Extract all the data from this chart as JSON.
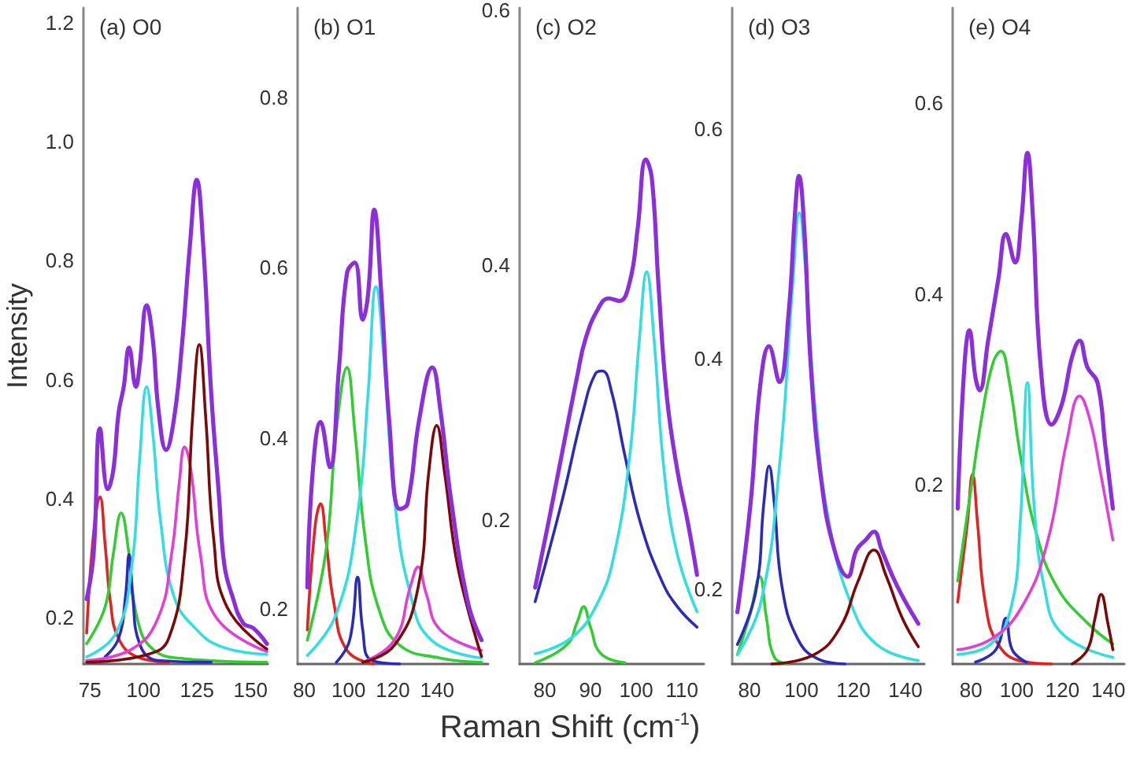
{
  "chart_data": [
    {
      "type": "line",
      "title": "(a) O0",
      "ylabel": "Intensity",
      "xlim": [
        72,
        158
      ],
      "xticks": [
        75,
        100,
        125,
        150
      ],
      "ylim": [
        0.122,
        1.225
      ],
      "yticks": [
        0.2,
        0.4,
        0.6,
        0.8,
        {
          "value": 1,
          "label": "1.0"
        },
        1.2
      ],
      "series": [
        {
          "color": "#e02424",
          "x": [
            73.5,
            76.7,
            79.7,
            82.1,
            84.6,
            88.4,
            97.0,
            111.8
          ],
          "values": [
            0.174,
            0.341,
            0.403,
            0.323,
            0.226,
            0.165,
            0.134,
            0.125
          ]
        },
        {
          "color": "#33cc33",
          "x": [
            73.5,
            82.1,
            85.9,
            89.6,
            93.3,
            97.0,
            104.4,
            119.2,
            157.6
          ],
          "values": [
            0.156,
            0.218,
            0.306,
            0.376,
            0.306,
            0.2,
            0.147,
            0.131,
            0.125
          ]
        },
        {
          "color": "#2b2bb8",
          "x": [
            82.1,
            88.4,
            91.6,
            93.3,
            95.0,
            98.2,
            106.9,
            131.6
          ],
          "values": [
            0.134,
            0.165,
            0.235,
            0.306,
            0.235,
            0.156,
            0.128,
            0.125
          ]
        },
        {
          "color": "#33dde0",
          "x": [
            73.5,
            87.2,
            94.6,
            98.2,
            101.5,
            104.4,
            108.1,
            114.3,
            124.2,
            136.5,
            157.6
          ],
          "values": [
            0.134,
            0.174,
            0.288,
            0.465,
            0.588,
            0.509,
            0.359,
            0.235,
            0.182,
            0.151,
            0.138
          ]
        },
        {
          "color": "#e040d8",
          "x": [
            73.5,
            94.6,
            106.9,
            113.1,
            116.8,
            119.2,
            122.2,
            126.6,
            134.0,
            157.6
          ],
          "values": [
            0.128,
            0.147,
            0.2,
            0.306,
            0.429,
            0.487,
            0.447,
            0.306,
            0.2,
            0.143
          ]
        },
        {
          "color": "#7a0a0a",
          "x": [
            73.5,
            101.9,
            111.8,
            119.2,
            122.9,
            126.1,
            129.1,
            132.8,
            139.0,
            157.6
          ],
          "values": [
            0.125,
            0.138,
            0.165,
            0.306,
            0.535,
            0.659,
            0.535,
            0.332,
            0.218,
            0.147
          ]
        },
        {
          "color": "#8b2fd9",
          "x": [
            73.5,
            76.7,
            79.7,
            83.4,
            85.9,
            88.4,
            90.8,
            93.3,
            96.5,
            98.2,
            101.5,
            104.4,
            106.9,
            110.6,
            114.3,
            118.0,
            121.7,
            124.9,
            127.9,
            131.6,
            135.3,
            137.8,
            141.6,
            146.5,
            151.4,
            157.6
          ],
          "values": [
            0.231,
            0.306,
            0.518,
            0.416,
            0.447,
            0.544,
            0.588,
            0.654,
            0.588,
            0.623,
            0.725,
            0.667,
            0.553,
            0.482,
            0.535,
            0.659,
            0.826,
            0.936,
            0.826,
            0.579,
            0.403,
            0.288,
            0.235,
            0.191,
            0.182,
            0.156
          ]
        }
      ]
    },
    {
      "type": "line",
      "title": "(b) O1",
      "xlim": [
        77,
        163
      ],
      "xticks": [
        80,
        100,
        120,
        140
      ],
      "ylim": [
        0.135,
        0.905
      ],
      "yticks": [
        0.2,
        0.4,
        0.6,
        0.8
      ],
      "series": [
        {
          "color": "#e02424",
          "x": [
            81.4,
            85.0,
            87.4,
            89.8,
            93.4,
            99.3,
            111.2
          ],
          "values": [
            0.175,
            0.299,
            0.323,
            0.28,
            0.206,
            0.151,
            0.135
          ]
        },
        {
          "color": "#33cc33",
          "x": [
            81.4,
            89.8,
            94.5,
            99.3,
            102.8,
            107.6,
            113.6,
            123.1,
            141.4,
            160.0
          ],
          "values": [
            0.163,
            0.268,
            0.409,
            0.483,
            0.409,
            0.28,
            0.2,
            0.157,
            0.142,
            0.137
          ]
        },
        {
          "color": "#2b2bb8",
          "x": [
            94.5,
            100.5,
            104.1,
            106.4,
            110.0,
            123.1
          ],
          "values": [
            0.137,
            0.163,
            0.237,
            0.175,
            0.14,
            0.135
          ]
        },
        {
          "color": "#33dde0",
          "x": [
            81.4,
            94.5,
            104.1,
            108.8,
            112.4,
            115.9,
            120.7,
            127.8,
            137.4,
            160.0
          ],
          "values": [
            0.145,
            0.194,
            0.311,
            0.452,
            0.578,
            0.495,
            0.329,
            0.218,
            0.163,
            0.142
          ]
        },
        {
          "color": "#e040d8",
          "x": [
            106.4,
            120.7,
            127.8,
            131.4,
            135.0,
            141.4,
            160.0
          ],
          "values": [
            0.137,
            0.163,
            0.225,
            0.249,
            0.218,
            0.175,
            0.151
          ]
        },
        {
          "color": "#7a0a0a",
          "x": [
            106.4,
            120.7,
            131.4,
            136.2,
            139.8,
            143.3,
            149.3,
            160.0
          ],
          "values": [
            0.137,
            0.157,
            0.225,
            0.36,
            0.415,
            0.36,
            0.249,
            0.144
          ]
        },
        {
          "color": "#8b2fd9",
          "x": [
            81.4,
            83.8,
            87.4,
            91.6,
            95.7,
            99.3,
            102.8,
            106.4,
            108.8,
            111.6,
            114.8,
            118.3,
            123.1,
            126.6,
            131.9,
            137.8,
            141.4,
            146.2,
            154.0,
            160.0
          ],
          "values": [
            0.225,
            0.36,
            0.419,
            0.366,
            0.483,
            0.594,
            0.606,
            0.539,
            0.569,
            0.668,
            0.569,
            0.422,
            0.317,
            0.323,
            0.422,
            0.483,
            0.434,
            0.329,
            0.206,
            0.163
          ]
        }
      ]
    },
    {
      "type": "line",
      "title": "(c) O2",
      "xlabel": "Raman Shift (cm$^{-1}$)",
      "xlim": [
        74.5,
        114.8
      ],
      "xticks": [
        80,
        90,
        100,
        110
      ],
      "ylim": [
        0.087,
        0.602
      ],
      "yticks": [
        0.2,
        0.4,
        0.6
      ],
      "series": [
        {
          "color": "#33cc33",
          "x": [
            77.9,
            84.8,
            87.1,
            88.5,
            90.0,
            92.3,
            97.5
          ],
          "values": [
            0.088,
            0.102,
            0.12,
            0.132,
            0.116,
            0.095,
            0.088
          ]
        },
        {
          "color": "#2b2bb8",
          "x": [
            77.9,
            83.7,
            88.3,
            91.1,
            92.6,
            94.6,
            97.5,
            100.9,
            105.5,
            109.0,
            113.3
          ],
          "values": [
            0.136,
            0.214,
            0.284,
            0.315,
            0.317,
            0.301,
            0.251,
            0.198,
            0.153,
            0.132,
            0.116
          ]
        },
        {
          "color": "#33dde0",
          "x": [
            77.9,
            86.0,
            91.7,
            95.2,
            98.6,
            100.7,
            102.3,
            103.9,
            106.1,
            109.0,
            113.3
          ],
          "values": [
            0.095,
            0.108,
            0.136,
            0.173,
            0.251,
            0.342,
            0.395,
            0.342,
            0.239,
            0.173,
            0.128
          ]
        },
        {
          "color": "#8b2fd9",
          "x": [
            77.9,
            80.8,
            83.7,
            87.1,
            88.9,
            91.7,
            94.0,
            96.3,
            98.6,
            100.3,
            102.1,
            103.4,
            104.9,
            106.7,
            109.0,
            111.3,
            113.3
          ],
          "values": [
            0.147,
            0.198,
            0.251,
            0.313,
            0.342,
            0.366,
            0.374,
            0.372,
            0.387,
            0.428,
            0.483,
            0.469,
            0.383,
            0.297,
            0.239,
            0.198,
            0.157
          ]
        }
      ]
    },
    {
      "type": "line",
      "title": "(d) O3",
      "xlim": [
        73.3,
        147.3
      ],
      "xticks": [
        80,
        100,
        120,
        140
      ],
      "ylim": [
        0.135,
        0.705
      ],
      "yticks": [
        0.2,
        0.4,
        0.6
      ],
      "series": [
        {
          "color": "#33cc33",
          "x": [
            75.3,
            80.4,
            83.9,
            86.5,
            89.5,
            94.5
          ],
          "values": [
            0.143,
            0.18,
            0.211,
            0.175,
            0.141,
            0.135
          ]
        },
        {
          "color": "#2b2bb8",
          "x": [
            75.3,
            82.4,
            85.5,
            87.5,
            89.5,
            92.5,
            98.5,
            106.7,
            116.8
          ],
          "values": [
            0.152,
            0.198,
            0.275,
            0.307,
            0.275,
            0.202,
            0.157,
            0.139,
            0.135
          ]
        },
        {
          "color": "#33dde0",
          "x": [
            75.3,
            84.4,
            91.5,
            96.5,
            99.2,
            101.6,
            105.6,
            110.7,
            118.8,
            128.9,
            145.0
          ],
          "values": [
            0.143,
            0.189,
            0.307,
            0.461,
            0.527,
            0.475,
            0.348,
            0.257,
            0.189,
            0.152,
            0.138
          ]
        },
        {
          "color": "#7a0a0a",
          "x": [
            88.5,
            104.7,
            114.7,
            121.8,
            127.9,
            132.7,
            138.8,
            145.0
          ],
          "values": [
            0.135,
            0.143,
            0.166,
            0.207,
            0.234,
            0.211,
            0.175,
            0.15
          ]
        },
        {
          "color": "#8b2fd9",
          "x": [
            75.3,
            80.4,
            84.0,
            87.5,
            91.5,
            95.0,
            97.6,
            99.0,
            101.0,
            103.6,
            107.7,
            112.7,
            117.8,
            121.2,
            124.8,
            127.9,
            130.9,
            137.0,
            145.0
          ],
          "values": [
            0.18,
            0.275,
            0.375,
            0.411,
            0.38,
            0.439,
            0.53,
            0.559,
            0.516,
            0.393,
            0.293,
            0.234,
            0.211,
            0.234,
            0.243,
            0.25,
            0.234,
            0.202,
            0.17
          ]
        }
      ]
    },
    {
      "type": "line",
      "title": "(e) O4",
      "xlim": [
        72,
        147
      ],
      "xticks": [
        80,
        100,
        120,
        140
      ],
      "ylim": [
        0.012,
        0.7
      ],
      "yticks": [
        0.2,
        0.4,
        0.6
      ],
      "series": [
        {
          "color": "#e02424",
          "x": [
            74.2,
            78.4,
            80.7,
            82.9,
            86.2,
            91.8,
            102.0,
            115.3
          ],
          "values": [
            0.077,
            0.159,
            0.211,
            0.159,
            0.077,
            0.033,
            0.015,
            0.012
          ]
        },
        {
          "color": "#33cc33",
          "x": [
            74.2,
            79.8,
            85.3,
            89.8,
            93.1,
            96.5,
            102.0,
            108.7,
            117.5,
            130.9,
            142.0
          ],
          "values": [
            0.099,
            0.192,
            0.279,
            0.329,
            0.34,
            0.312,
            0.225,
            0.148,
            0.093,
            0.055,
            0.033
          ]
        },
        {
          "color": "#2b2bb8",
          "x": [
            82.0,
            90.9,
            95.3,
            98.0,
            104.2
          ],
          "values": [
            0.014,
            0.027,
            0.06,
            0.027,
            0.014
          ]
        },
        {
          "color": "#33dde0",
          "x": [
            74.2,
            88.7,
            97.5,
            101.5,
            104.7,
            107.5,
            112.0,
            119.8,
            142.0
          ],
          "values": [
            0.022,
            0.033,
            0.071,
            0.159,
            0.307,
            0.181,
            0.093,
            0.044,
            0.019
          ]
        },
        {
          "color": "#e040d8",
          "x": [
            74.2,
            88.7,
            102.0,
            113.1,
            122.0,
            127.5,
            132.0,
            136.5,
            142.0
          ],
          "values": [
            0.027,
            0.038,
            0.071,
            0.137,
            0.247,
            0.293,
            0.268,
            0.214,
            0.142
          ]
        },
        {
          "color": "#7a0a0a",
          "x": [
            124.2,
            130.9,
            134.2,
            136.9,
            139.8,
            142.0
          ],
          "values": [
            0.012,
            0.027,
            0.06,
            0.085,
            0.055,
            0.027
          ]
        },
        {
          "color": "#8b2fd9",
          "x": [
            74.2,
            77.1,
            79.3,
            82.0,
            83.8,
            87.5,
            92.0,
            95.3,
            99.3,
            102.0,
            104.7,
            106.9,
            110.5,
            115.3,
            119.8,
            124.2,
            127.5,
            130.9,
            135.3,
            138.7,
            142.0
          ],
          "values": [
            0.175,
            0.323,
            0.362,
            0.312,
            0.299,
            0.351,
            0.416,
            0.463,
            0.433,
            0.477,
            0.548,
            0.488,
            0.323,
            0.263,
            0.285,
            0.334,
            0.351,
            0.323,
            0.307,
            0.241,
            0.175
          ]
        }
      ]
    }
  ]
}
